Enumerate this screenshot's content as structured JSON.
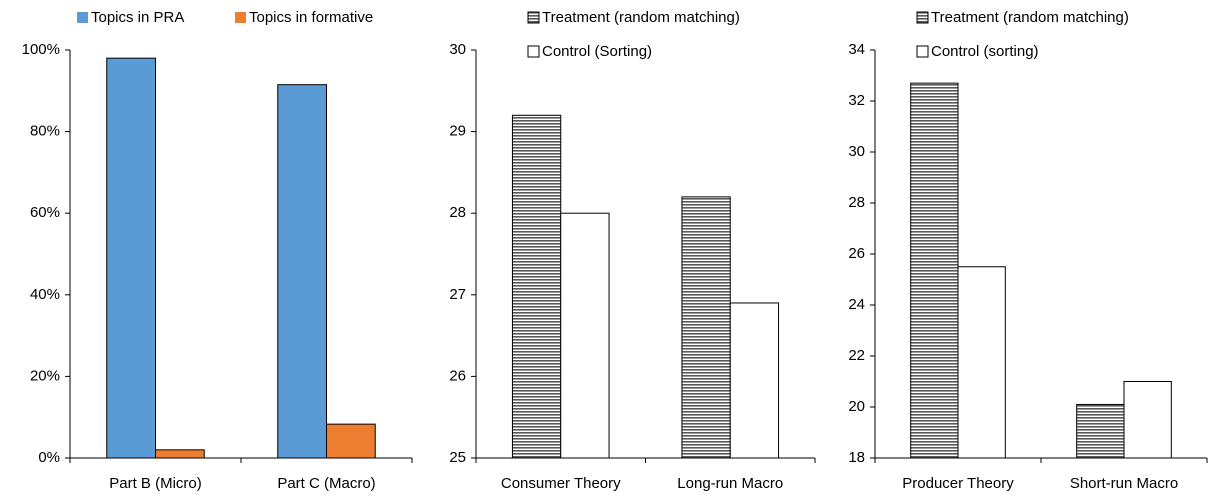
{
  "chart_data": [
    {
      "type": "bar",
      "categories": [
        "Part B (Micro)",
        "Part C (Macro)"
      ],
      "series": [
        {
          "name": "Topics in PRA",
          "color": "#5b9bd5",
          "values": [
            98,
            91.5
          ]
        },
        {
          "name": "Topics in formative",
          "color": "#ed7d31",
          "values": [
            2,
            8.3
          ]
        }
      ],
      "ylim": [
        0,
        100
      ],
      "yticks": [
        {
          "value": 0,
          "label": "0%"
        },
        {
          "value": 20,
          "label": "20%"
        },
        {
          "value": 40,
          "label": "40%"
        },
        {
          "value": 60,
          "label": "60%"
        },
        {
          "value": 80,
          "label": "80%"
        },
        {
          "value": 100,
          "label": "100%"
        }
      ],
      "legend": "top-row"
    },
    {
      "type": "bar",
      "categories": [
        "Consumer Theory",
        "Long-run Macro"
      ],
      "series": [
        {
          "name": "Treatment (random matching)",
          "color": "#595959",
          "pattern": "stripes",
          "values": [
            29.2,
            28.2
          ]
        },
        {
          "name": "Control (Sorting)",
          "color": "#ffffff",
          "values": [
            28.0,
            26.9
          ]
        }
      ],
      "ylim": [
        25,
        30
      ],
      "yticks": [
        25,
        26,
        27,
        28,
        29,
        30
      ],
      "legend": "top-stacked"
    },
    {
      "type": "bar",
      "categories": [
        "Producer Theory",
        "Short-run Macro"
      ],
      "series": [
        {
          "name": "Treatment (random matching)",
          "color": "#595959",
          "pattern": "stripes",
          "values": [
            32.7,
            20.1
          ]
        },
        {
          "name": "Control (sorting)",
          "color": "#ffffff",
          "values": [
            25.5,
            21.0
          ]
        }
      ],
      "ylim": [
        18,
        34
      ],
      "yticks": [
        18,
        20,
        22,
        24,
        26,
        28,
        30,
        32,
        34
      ],
      "legend": "top-stacked"
    }
  ]
}
